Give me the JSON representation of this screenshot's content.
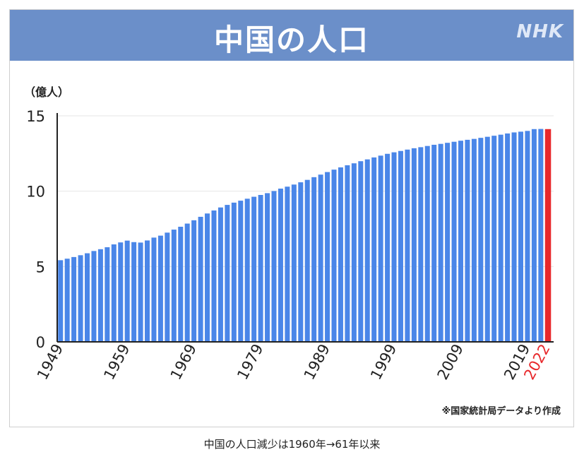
{
  "card": {
    "title": "中国の人口",
    "brand": "NHK",
    "source_note": "※国家統計局データより作成"
  },
  "caption": "中国の人口減少は1960年→61年以来",
  "colors": {
    "bar": "#4a86e8",
    "highlight": "#e8282b",
    "header": "#6b8fc9"
  },
  "chart_data": {
    "type": "bar",
    "ylabel": "（億人）",
    "ylim": [
      0,
      15
    ],
    "yticks": [
      0,
      5,
      10,
      15
    ],
    "xtick_labels": [
      "1949",
      "1959",
      "1969",
      "1979",
      "1989",
      "1999",
      "2009",
      "2019",
      "2022"
    ],
    "highlight_year": 2022,
    "categories": [
      1949,
      1950,
      1951,
      1952,
      1953,
      1954,
      1955,
      1956,
      1957,
      1958,
      1959,
      1960,
      1961,
      1962,
      1963,
      1964,
      1965,
      1966,
      1967,
      1968,
      1969,
      1970,
      1971,
      1972,
      1973,
      1974,
      1975,
      1976,
      1977,
      1978,
      1979,
      1980,
      1981,
      1982,
      1983,
      1984,
      1985,
      1986,
      1987,
      1988,
      1989,
      1990,
      1991,
      1992,
      1993,
      1994,
      1995,
      1996,
      1997,
      1998,
      1999,
      2000,
      2001,
      2002,
      2003,
      2004,
      2005,
      2006,
      2007,
      2008,
      2009,
      2010,
      2011,
      2012,
      2013,
      2014,
      2015,
      2016,
      2017,
      2018,
      2019,
      2020,
      2021,
      2022
    ],
    "values": [
      5.42,
      5.52,
      5.63,
      5.75,
      5.88,
      6.03,
      6.15,
      6.28,
      6.47,
      6.6,
      6.72,
      6.62,
      6.59,
      6.73,
      6.92,
      7.05,
      7.25,
      7.45,
      7.64,
      7.85,
      8.07,
      8.3,
      8.52,
      8.72,
      8.92,
      9.09,
      9.24,
      9.37,
      9.5,
      9.63,
      9.75,
      9.87,
      10.01,
      10.17,
      10.3,
      10.44,
      10.59,
      10.75,
      10.93,
      11.1,
      11.27,
      11.43,
      11.58,
      11.72,
      11.85,
      11.99,
      12.11,
      12.24,
      12.36,
      12.48,
      12.58,
      12.67,
      12.76,
      12.85,
      12.92,
      13.0,
      13.08,
      13.14,
      13.21,
      13.28,
      13.35,
      13.41,
      13.47,
      13.54,
      13.61,
      13.68,
      13.75,
      13.83,
      13.9,
      13.95,
      14.0,
      14.12,
      14.13,
      14.12
    ]
  }
}
